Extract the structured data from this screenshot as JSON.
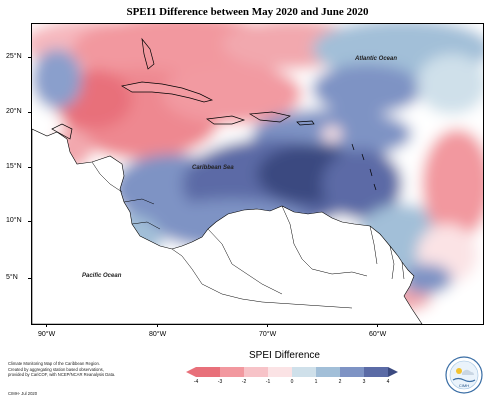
{
  "title": "SPEI1 Difference between May 2020 and June 2020",
  "map_labels": {
    "atlantic": "Atlantic Ocean",
    "caribbean": "Caribbean Sea",
    "pacific": "Pacific Ocean"
  },
  "lat_labels": [
    "25°N",
    "20°N",
    "15°N",
    "10°N",
    "5°N"
  ],
  "lon_labels": [
    "90°W",
    "80°W",
    "70°W",
    "60°W"
  ],
  "legend": {
    "title": "SPEI Difference",
    "ticks": [
      "-4",
      "-3",
      "-2",
      "-1",
      "0",
      "1",
      "2",
      "3",
      "4"
    ],
    "colors": [
      "#e8707a",
      "#f2989f",
      "#f7c3c8",
      "#fbe3e5",
      "#ffffff",
      "#cfe0ea",
      "#a2bfd8",
      "#7e93c4",
      "#5b6ba6",
      "#3b4a80"
    ]
  },
  "credit_lines": [
    "Climate Monitoring Map of the Caribbean Region.",
    "Created by aggregating station based observations,",
    "provided by CariCOF, with NCEP/NCAR Reanalysis Data."
  ],
  "cimh": "CIMH- Jul 2020",
  "logo_text": "CIMH"
}
